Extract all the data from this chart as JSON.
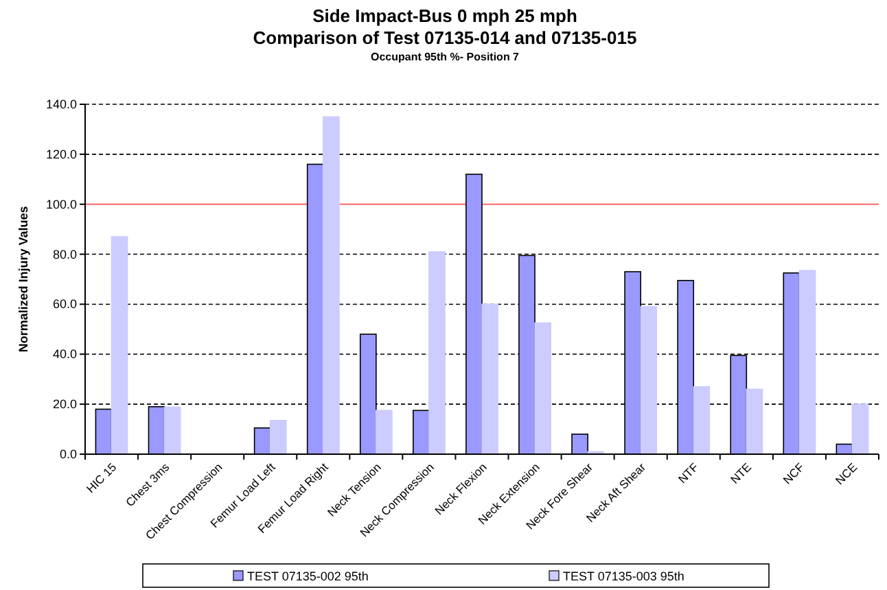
{
  "chart_data": {
    "type": "bar",
    "title": "Side Impact-Bus 0 mph 25 mph\nComparison of Test 07135-014 and  07135-015",
    "subtitle": "Occupant 95th %- Position 7",
    "ylabel": "Normalized Injury Values",
    "categories": [
      "HIC 15",
      "Chest 3ms",
      "Chest Compression",
      "Femur Load Left",
      "Femur Load Right",
      "Neck Tension",
      "Neck Compression",
      "Neck Flexion",
      "Neck Extension",
      "Neck Fore Shear",
      "Neck Aft Shear",
      "NTF",
      "NTE",
      "NCF",
      "NCE"
    ],
    "series": [
      {
        "name": "TEST 07135-002 95th",
        "color": "#9999ff",
        "values": [
          18,
          19,
          null,
          10.5,
          116,
          48,
          17.5,
          112,
          79.5,
          8,
          73,
          69.5,
          39.5,
          72.5,
          4
        ]
      },
      {
        "name": "TEST 07135-003 95th",
        "color": "#ccccff",
        "values": [
          87,
          18.8,
          null,
          13.5,
          135,
          17.5,
          81,
          60,
          52.5,
          1,
          59,
          27,
          26,
          73.5,
          20
        ]
      }
    ],
    "ylim": [
      0,
      140
    ],
    "yticks": [
      {
        "value": 0,
        "label": "0.0"
      },
      {
        "value": 20,
        "label": "20.0"
      },
      {
        "value": 40,
        "label": "40.0"
      },
      {
        "value": 60,
        "label": "60.0"
      },
      {
        "value": 80,
        "label": "80.0"
      },
      {
        "value": 100,
        "label": "100.0"
      },
      {
        "value": 120,
        "label": "120.0"
      },
      {
        "value": 140,
        "label": "140.0"
      }
    ],
    "grid": "y",
    "legend": "bottom",
    "ref_lines": [
      {
        "axis": "y",
        "value": 100,
        "color": "#ff8080"
      }
    ]
  }
}
